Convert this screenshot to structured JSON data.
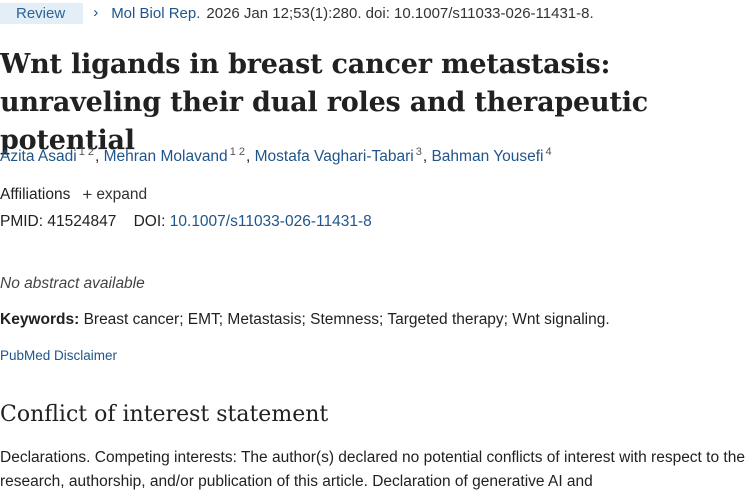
{
  "header": {
    "badge": "Review",
    "journal": "Mol Biol Rep.",
    "citation": "2026 Jan 12;53(1):280. doi: 10.1007/s11033-026-11431-8."
  },
  "title": "Wnt ligands in breast cancer metastasis: unraveling their dual roles and therapeutic potential",
  "authors": [
    {
      "name": "Azita Asadi",
      "affils": "1 2"
    },
    {
      "name": "Mehran Molavand",
      "affils": "1 2"
    },
    {
      "name": "Mostafa Vaghari-Tabari",
      "affils": "3"
    },
    {
      "name": "Bahman Yousefi",
      "affils": "4"
    }
  ],
  "affiliations": {
    "label": "Affiliations",
    "expand_label": "expand"
  },
  "ids": {
    "pmid_label": "PMID:",
    "pmid": "41524847",
    "doi_label": "DOI:",
    "doi": "10.1007/s11033-026-11431-8"
  },
  "abstract_note": "No abstract available",
  "keywords": {
    "label": "Keywords:",
    "text": "Breast cancer; EMT; Metastasis; Stemness; Targeted therapy; Wnt signaling."
  },
  "disclaimer": "PubMed Disclaimer",
  "coi": {
    "heading": "Conflict of interest statement",
    "text": "Declarations. Competing interests: The author(s) declared no potential conflicts of interest with respect to the research, authorship, and/or publication of this article. Declaration of generative AI and"
  }
}
